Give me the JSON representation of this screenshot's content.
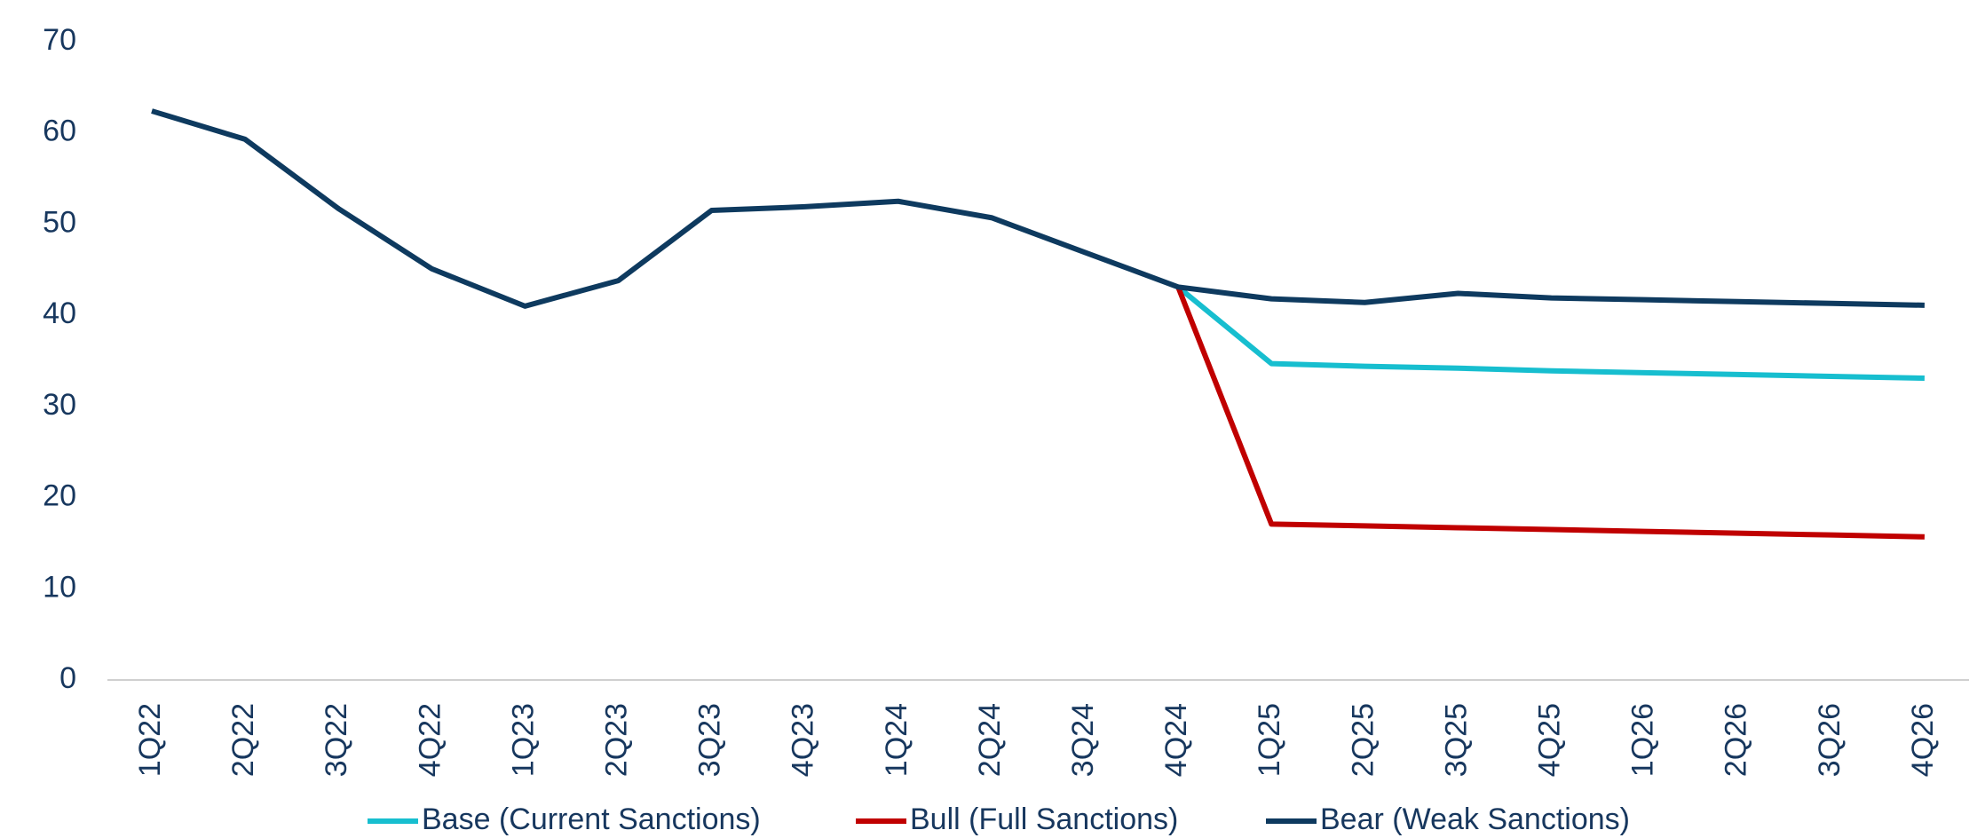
{
  "chart_data": {
    "type": "line",
    "categories": [
      "1Q22",
      "2Q22",
      "3Q22",
      "4Q22",
      "1Q23",
      "2Q23",
      "3Q23",
      "4Q23",
      "1Q24",
      "2Q24",
      "3Q24",
      "4Q24",
      "1Q25",
      "2Q25",
      "3Q25",
      "4Q25",
      "1Q26",
      "2Q26",
      "3Q26",
      "4Q26"
    ],
    "series": [
      {
        "name": "Base (Current Sanctions)",
        "color": "#17becf",
        "values": [
          null,
          null,
          null,
          null,
          null,
          null,
          null,
          null,
          null,
          null,
          null,
          43.1,
          34.7,
          34.4,
          34.2,
          33.9,
          33.7,
          33.5,
          33.3,
          33.1
        ]
      },
      {
        "name": "Bull (Full Sanctions)",
        "color": "#c00000",
        "values": [
          null,
          null,
          null,
          null,
          null,
          null,
          null,
          null,
          null,
          null,
          null,
          43.1,
          17.1,
          16.9,
          16.7,
          16.5,
          16.3,
          16.1,
          15.9,
          15.7
        ]
      },
      {
        "name": "Bear (Weak Sanctions)",
        "color": "#0e3a5f",
        "values": [
          62.4,
          59.3,
          51.7,
          45.1,
          41.0,
          43.8,
          51.5,
          51.9,
          52.5,
          50.7,
          46.9,
          43.1,
          41.8,
          41.4,
          42.4,
          41.9,
          41.7,
          41.5,
          41.3,
          41.1
        ]
      }
    ],
    "ylim": [
      0,
      70
    ],
    "yticks": [
      0,
      10,
      20,
      30,
      40,
      50,
      60,
      70
    ],
    "grid": false,
    "legend": "bottom"
  }
}
